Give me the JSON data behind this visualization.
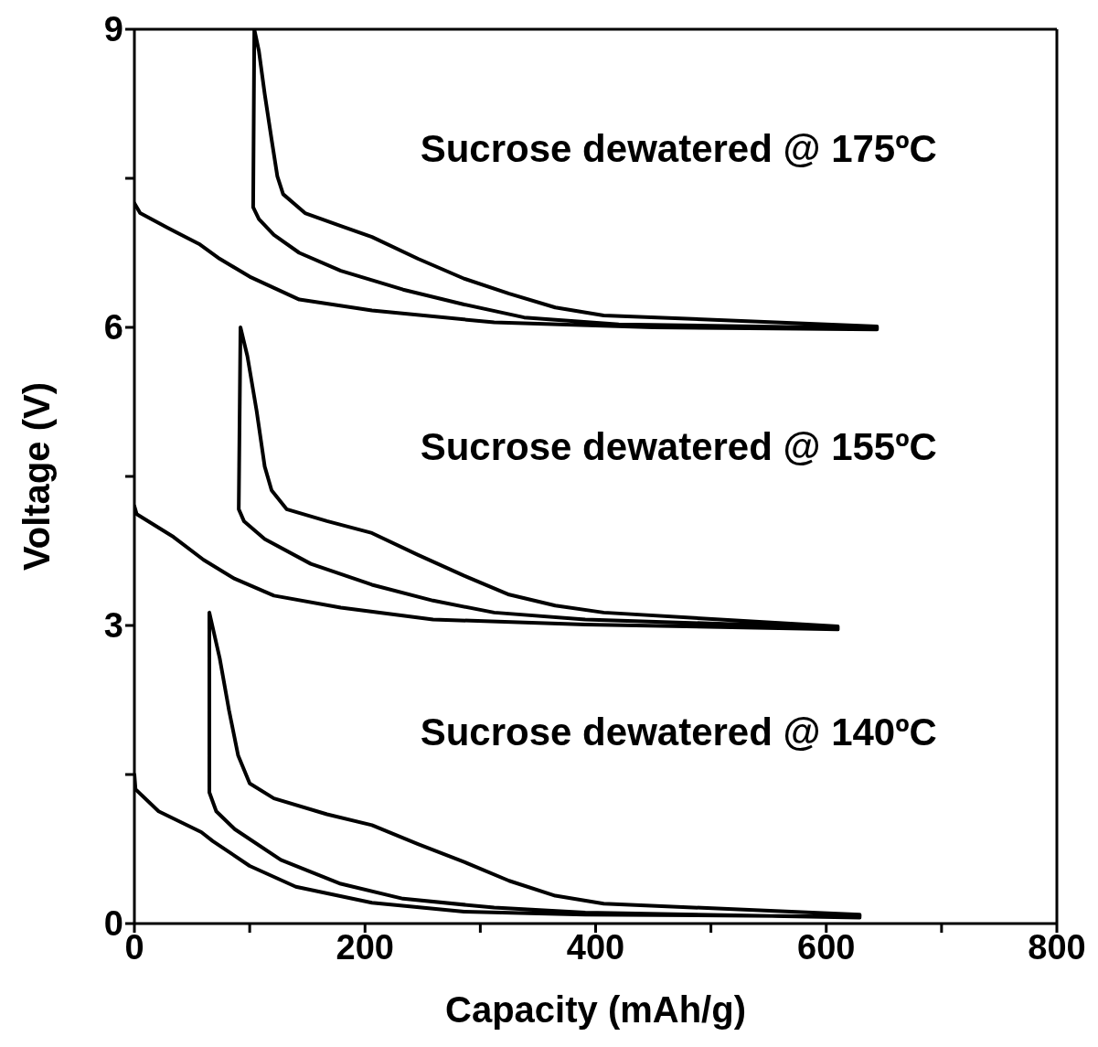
{
  "chart_data": {
    "type": "line",
    "xlabel": "Capacity (mAh/g)",
    "ylabel": "Voltage (V)",
    "xlim": [
      0,
      800
    ],
    "ylim": [
      0,
      9
    ],
    "xticks": [
      0,
      {
        "value": 100,
        "label": null
      },
      200,
      {
        "value": 300,
        "label": null
      },
      400,
      {
        "value": 500,
        "label": null
      },
      600,
      {
        "value": 700,
        "label": null
      },
      800
    ],
    "yticks": [
      0,
      {
        "value": 1.5,
        "label": null
      },
      3,
      {
        "value": 4.5,
        "label": null
      },
      6,
      {
        "value": 7.5,
        "label": null
      },
      9
    ],
    "marker": "none",
    "line_style": "solid",
    "series": [
      {
        "name": "Sucrose dewatered @ 175ºC",
        "color": "#000000",
        "x": [
          0,
          5,
          29,
          56,
          74,
          100,
          143,
          206,
          312,
          450,
          644,
          644,
          407,
          365,
          325,
          286,
          246,
          206,
          179,
          148,
          129,
          124,
          119,
          113,
          108,
          104,
          103,
          108,
          121,
          143,
          179,
          233,
          286,
          338,
          420,
          644
        ],
        "values": [
          7.25,
          7.15,
          7.0,
          6.84,
          6.69,
          6.51,
          6.28,
          6.17,
          6.05,
          6.0,
          5.98,
          6.01,
          6.12,
          6.2,
          6.34,
          6.49,
          6.69,
          6.91,
          7.02,
          7.15,
          7.34,
          7.52,
          7.89,
          8.35,
          8.78,
          9.0,
          7.21,
          7.09,
          6.93,
          6.75,
          6.57,
          6.38,
          6.23,
          6.1,
          6.03,
          5.99
        ]
      },
      {
        "name": "Sucrose dewatered @ 155ºC",
        "color": "#000000",
        "x": [
          0,
          2,
          34,
          60,
          87,
          121,
          179,
          259,
          391,
          610,
          610,
          407,
          365,
          325,
          286,
          246,
          206,
          167,
          132,
          119,
          113,
          106,
          98,
          92,
          90.5,
          95,
          113,
          153,
          206,
          259,
          312,
          391,
          610
        ],
        "values": [
          4.2,
          4.12,
          3.89,
          3.66,
          3.47,
          3.3,
          3.18,
          3.06,
          3.01,
          2.96,
          2.99,
          3.13,
          3.2,
          3.31,
          3.5,
          3.71,
          3.93,
          4.05,
          4.17,
          4.36,
          4.6,
          5.16,
          5.71,
          6.0,
          4.17,
          4.05,
          3.87,
          3.62,
          3.41,
          3.25,
          3.13,
          3.06,
          2.98
        ]
      },
      {
        "name": "Sucrose dewatered @ 140ºC",
        "color": "#000000",
        "x": [
          0,
          1,
          21,
          58,
          68,
          100,
          140,
          206,
          286,
          391,
          629,
          629,
          407,
          365,
          325,
          286,
          246,
          206,
          167,
          121,
          100,
          90,
          82,
          74,
          65,
          65,
          71,
          87,
          127,
          179,
          233,
          312,
          391,
          629
        ],
        "values": [
          1.5,
          1.35,
          1.13,
          0.92,
          0.83,
          0.58,
          0.37,
          0.21,
          0.12,
          0.09,
          0.07,
          0.09,
          0.2,
          0.28,
          0.43,
          0.62,
          0.8,
          0.99,
          1.1,
          1.26,
          1.41,
          1.69,
          2.15,
          2.67,
          3.13,
          1.32,
          1.13,
          0.95,
          0.64,
          0.4,
          0.25,
          0.16,
          0.11,
          0.06
        ]
      }
    ]
  }
}
